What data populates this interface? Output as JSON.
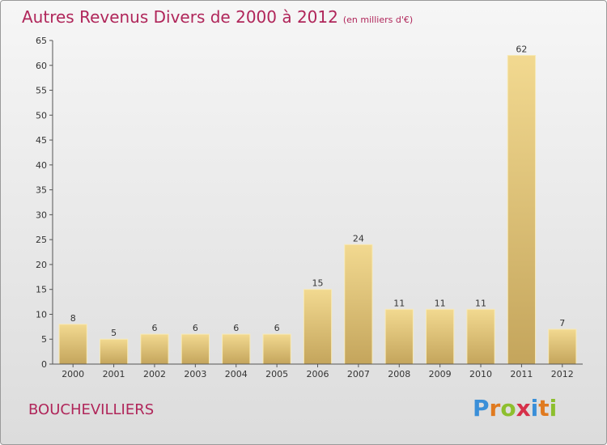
{
  "title": "Autres Revenus Divers de 2000 à 2012",
  "subtitle": "(en milliers d'€)",
  "commune": "BOUCHEVILLIERS",
  "logo": {
    "letters": [
      {
        "ch": "P",
        "color": "#3a8fd8"
      },
      {
        "ch": "r",
        "color": "#e07a1f"
      },
      {
        "ch": "o",
        "color": "#8dbf2e"
      },
      {
        "ch": "x",
        "color": "#d6304a"
      },
      {
        "ch": "i",
        "color": "#3a8fd8"
      },
      {
        "ch": "t",
        "color": "#e07a1f"
      },
      {
        "ch": "i",
        "color": "#8dbf2e"
      }
    ]
  },
  "chart_data": {
    "type": "bar",
    "categories": [
      "2000",
      "2001",
      "2002",
      "2003",
      "2004",
      "2005",
      "2006",
      "2007",
      "2008",
      "2009",
      "2010",
      "2011",
      "2012"
    ],
    "values": [
      8,
      5,
      6,
      6,
      6,
      6,
      15,
      24,
      11,
      11,
      11,
      62,
      7
    ],
    "ylim": [
      0,
      65
    ],
    "yticks": [
      0,
      5,
      10,
      15,
      20,
      25,
      30,
      35,
      40,
      45,
      50,
      55,
      60,
      65
    ],
    "grid": false,
    "bar_color_top": "#f2d990",
    "bar_color_bottom": "#c4a55c"
  }
}
